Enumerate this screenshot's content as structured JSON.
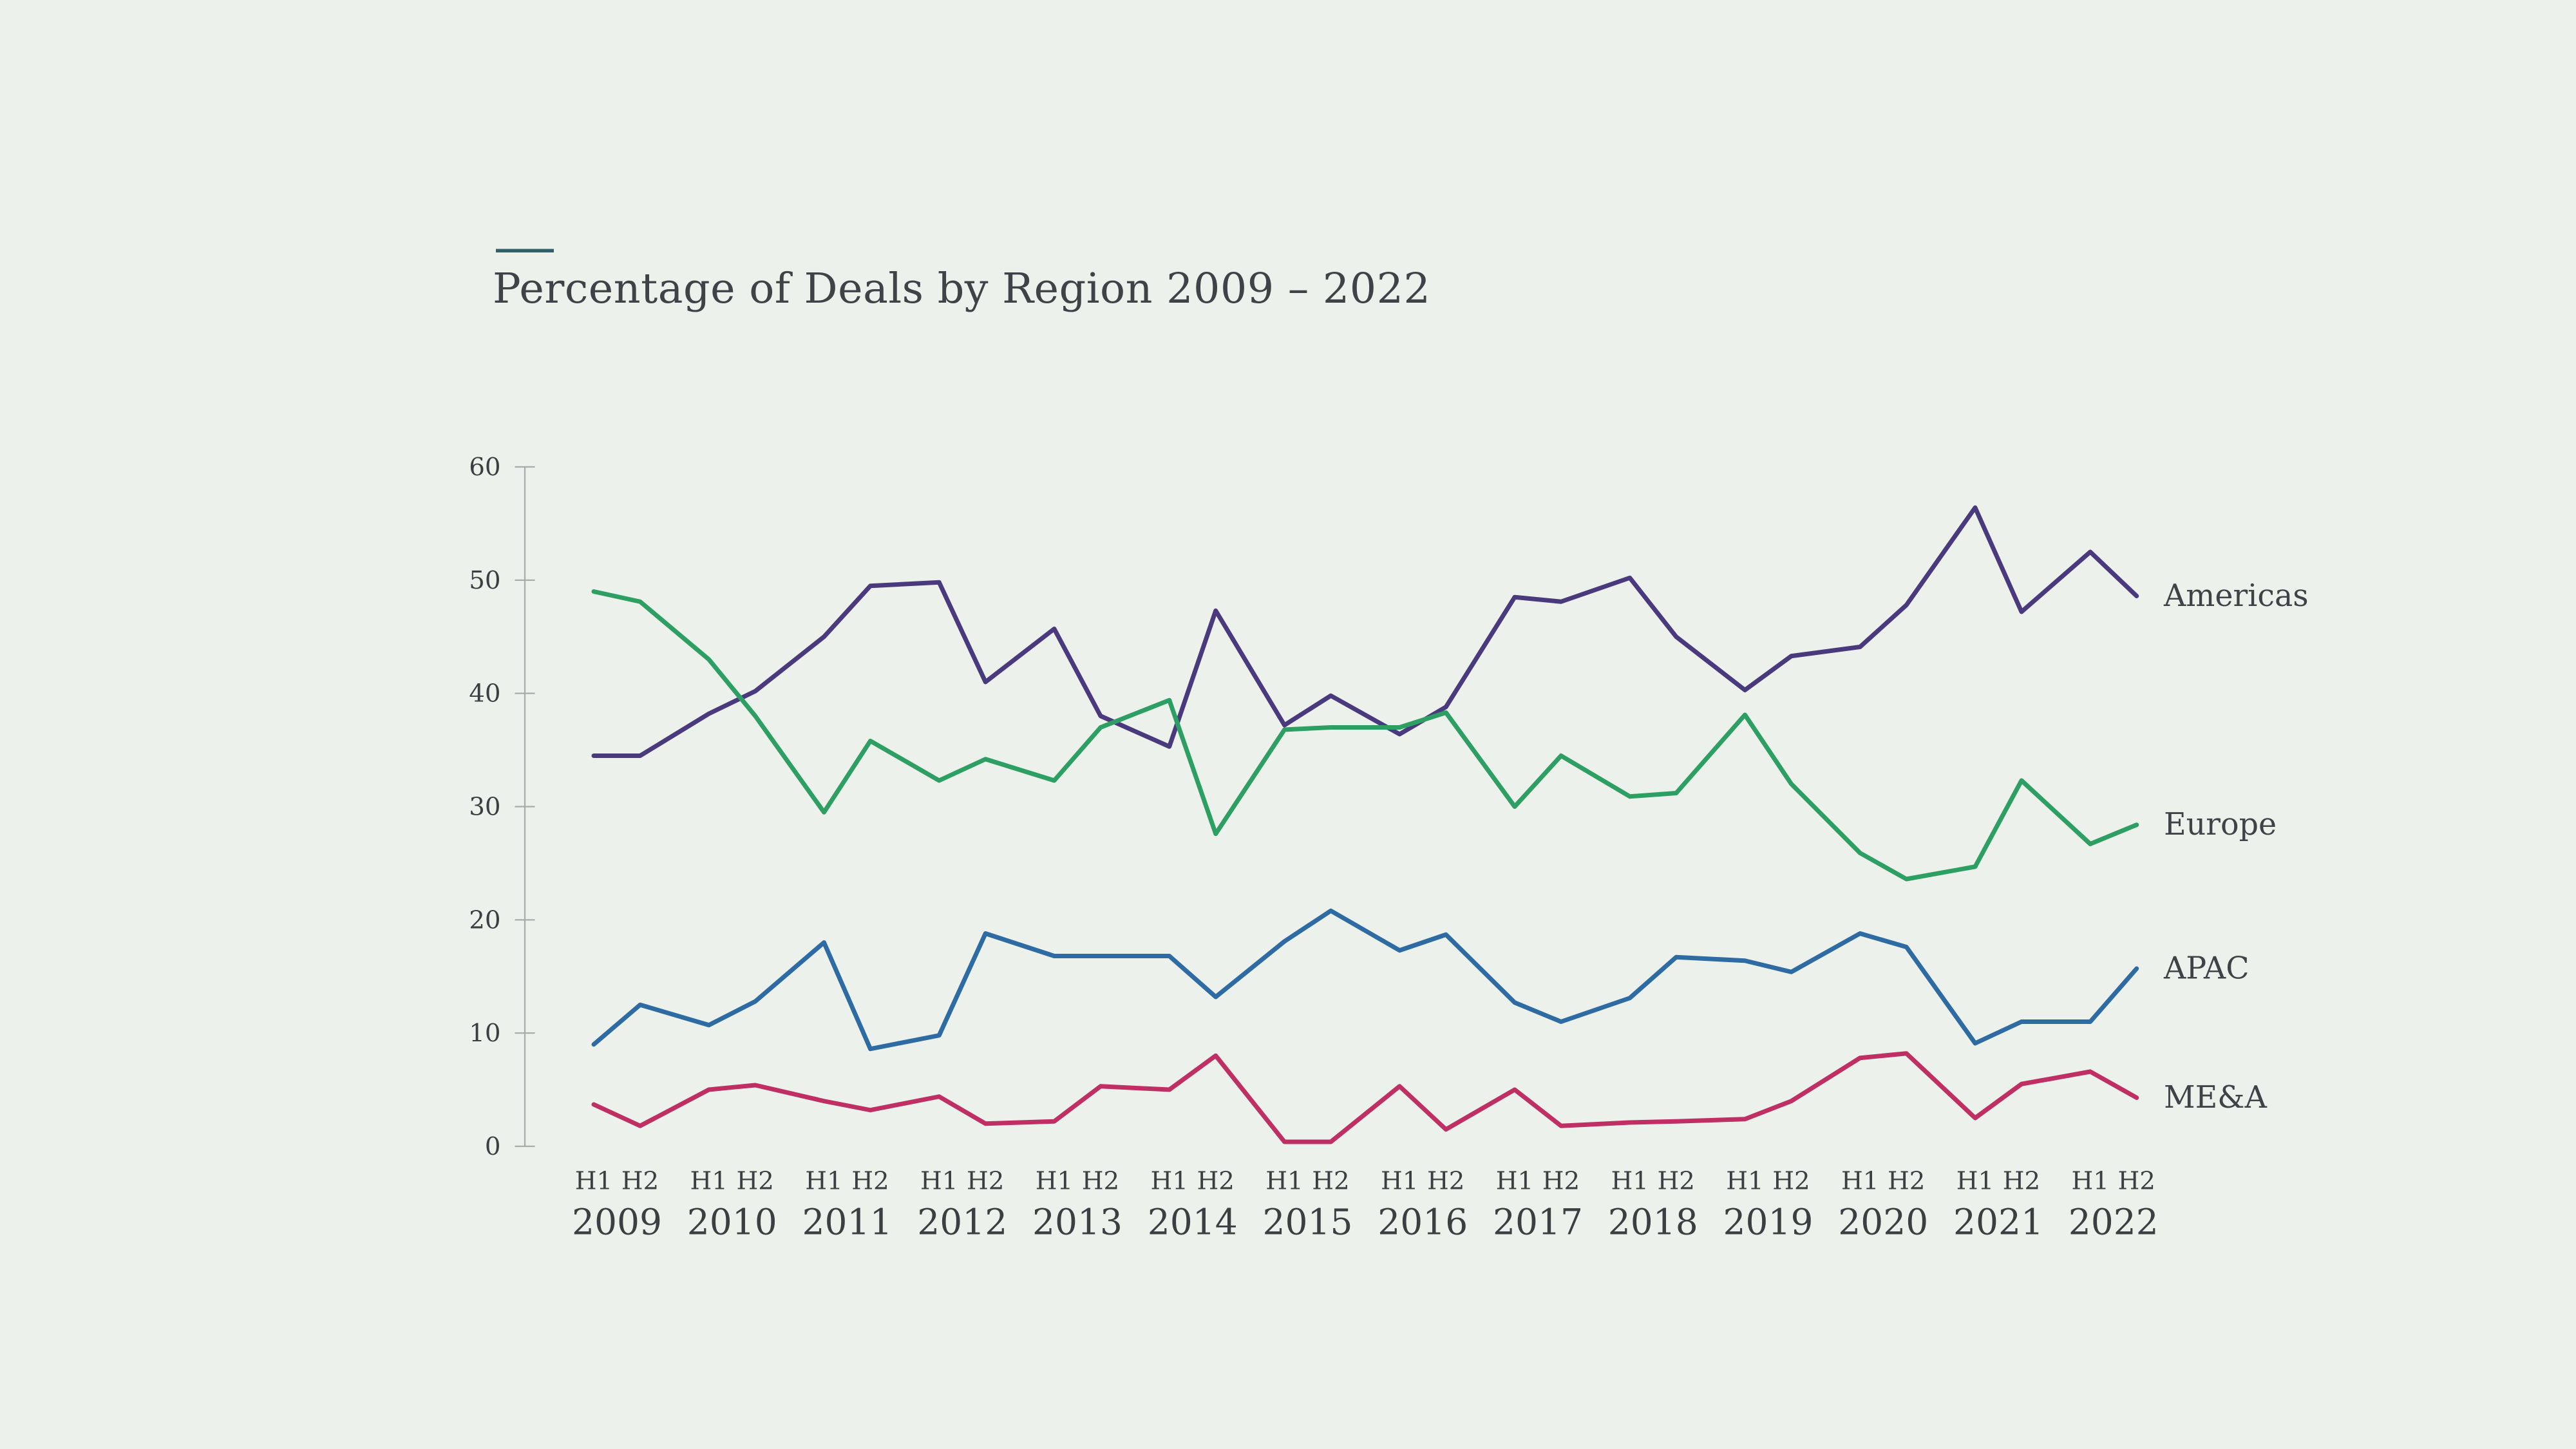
{
  "page": {
    "background": "#ecf1ec"
  },
  "header": {
    "accent_color": "#2e616b",
    "title": "Percentage of Deals by Region 2009 – 2022",
    "title_color": "#3f4347"
  },
  "chart_data": {
    "type": "line",
    "title": "Percentage of Deals by Region 2009 – 2022",
    "grid": false,
    "legend_position": "right-of-line-ends",
    "text_color": "#3a3f42",
    "axis_color": "#a6adaa",
    "y_axis": {
      "min": 0,
      "max": 60,
      "step": 10,
      "tick_labels": [
        "0",
        "10",
        "20",
        "30",
        "40",
        "50",
        "60"
      ]
    },
    "x_axis": {
      "half_labels": [
        "H1",
        "H2"
      ],
      "years": [
        "2009",
        "2010",
        "2011",
        "2012",
        "2013",
        "2014",
        "2015",
        "2016",
        "2017",
        "2018",
        "2019",
        "2020",
        "2021",
        "2022"
      ]
    },
    "series": [
      {
        "name": "Americas",
        "color": "#4a3a7d",
        "values": [
          34.5,
          34.5,
          38.2,
          40.2,
          45.0,
          49.5,
          49.8,
          41.0,
          45.7,
          38.0,
          35.3,
          47.3,
          37.2,
          39.8,
          36.4,
          38.8,
          48.5,
          48.1,
          50.2,
          45.0,
          40.3,
          43.3,
          44.1,
          47.8,
          56.4,
          47.2,
          52.5,
          48.6
        ]
      },
      {
        "name": "Europe",
        "color": "#2d9f62",
        "values": [
          49.0,
          48.1,
          43.0,
          38.0,
          29.5,
          35.8,
          32.3,
          34.2,
          32.3,
          37.0,
          39.4,
          27.6,
          36.8,
          37.0,
          37.0,
          38.3,
          30.0,
          34.5,
          30.9,
          31.2,
          38.1,
          32.0,
          25.9,
          23.6,
          24.7,
          32.3,
          26.7,
          28.4
        ]
      },
      {
        "name": "APAC",
        "color": "#2f6ba3",
        "values": [
          9.0,
          12.5,
          10.7,
          12.8,
          18.0,
          8.6,
          9.8,
          18.8,
          16.8,
          16.8,
          16.8,
          13.2,
          18.1,
          20.8,
          17.3,
          18.7,
          12.7,
          11.0,
          13.1,
          16.7,
          16.4,
          15.4,
          18.8,
          17.6,
          9.1,
          11.0,
          11.0,
          15.7
        ]
      },
      {
        "name": "ME&A",
        "color": "#c02f63",
        "values": [
          3.7,
          1.8,
          5.0,
          5.4,
          4.0,
          3.2,
          4.4,
          2.0,
          2.2,
          5.3,
          5.0,
          8.0,
          0.4,
          0.4,
          5.3,
          1.5,
          5.0,
          1.8,
          2.1,
          2.2,
          2.4,
          4.0,
          7.8,
          8.2,
          2.5,
          5.5,
          6.6,
          4.3
        ]
      }
    ]
  }
}
